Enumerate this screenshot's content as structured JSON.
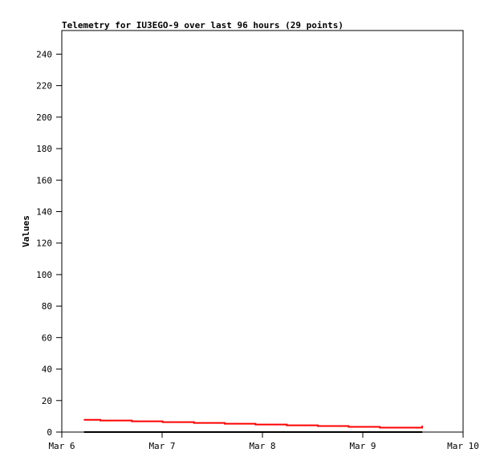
{
  "chart_data": {
    "type": "line",
    "title": "Telemetry for IU3EGO-9 over last 96 hours (29 points)",
    "xlabel": "",
    "ylabel": "Values",
    "xlim": [
      "Mar 6 00:00",
      "Mar 10 00:00"
    ],
    "ylim": [
      0,
      255
    ],
    "x_ticks": [
      "Mar 6",
      "Mar 7",
      "Mar 8",
      "Mar 9",
      "Mar 10"
    ],
    "y_ticks": [
      0,
      20,
      40,
      60,
      80,
      100,
      120,
      140,
      160,
      180,
      200,
      220,
      240
    ],
    "grid": false,
    "series": [
      {
        "color": "#ff0000",
        "step": true,
        "points": [
          [
            "Mar 6 05:22",
            7.8
          ],
          [
            "Mar 6 09:13",
            7.3
          ],
          [
            "Mar 6 16:46",
            6.8
          ],
          [
            "Mar 7 00:07",
            6.3
          ],
          [
            "Mar 7 07:38",
            5.8
          ],
          [
            "Mar 7 14:58",
            5.3
          ],
          [
            "Mar 7 22:20",
            4.8
          ],
          [
            "Mar 8 05:50",
            4.3
          ],
          [
            "Mar 8 13:15",
            3.8
          ],
          [
            "Mar 8 20:37",
            3.3
          ],
          [
            "Mar 9 04:06",
            2.8
          ],
          [
            "Mar 9 13:22",
            2.8
          ],
          [
            "Mar 9 14:13",
            3.8
          ]
        ]
      },
      {
        "color": "#000000",
        "step": true,
        "points": [
          [
            "Mar 6 05:22",
            0
          ],
          [
            "Mar 9 14:13",
            0
          ]
        ]
      }
    ]
  }
}
